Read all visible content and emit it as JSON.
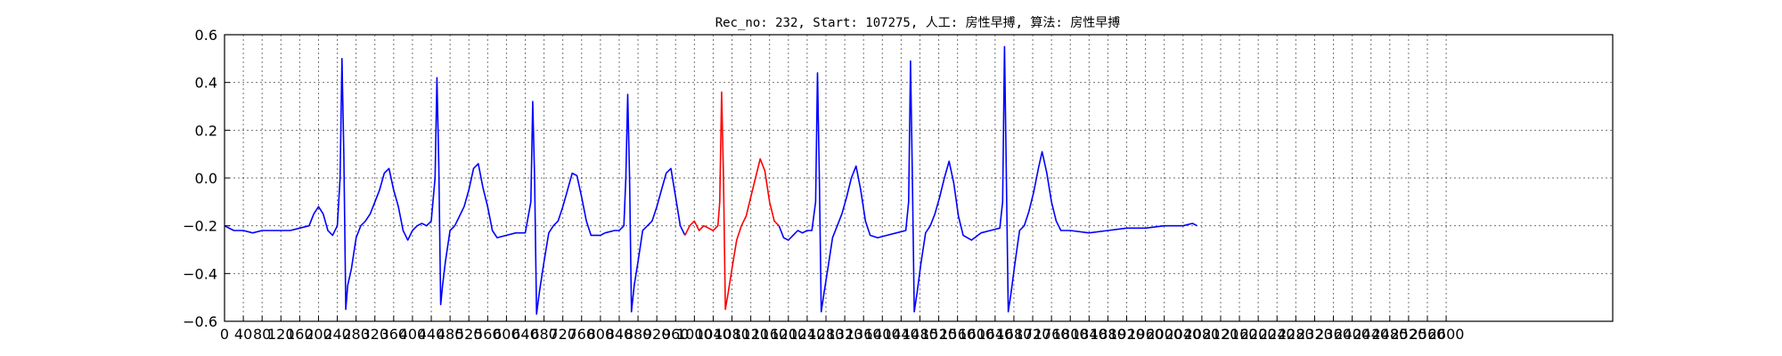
{
  "chart_data": {
    "type": "line",
    "title": "Rec_no: 232, Start: 107275, 人工: 房性早搏, 算法: 房性早搏",
    "xlabel": "",
    "ylabel": "",
    "xlim": [
      0,
      2560
    ],
    "ylim": [
      -0.6,
      0.6
    ],
    "x_step": 40,
    "x_tick_labels": [
      "0",
      "40",
      "80",
      "120",
      "160",
      "200",
      "240",
      "280",
      "320",
      "360",
      "400",
      "440",
      "480",
      "520",
      "560",
      "600",
      "640",
      "680",
      "720",
      "760",
      "800",
      "840",
      "880",
      "920",
      "960",
      "1000",
      "1040",
      "1080",
      "1120",
      "1160",
      "1200",
      "1240",
      "1280",
      "1320",
      "1360",
      "1400",
      "1440",
      "1480",
      "1520",
      "1560",
      "1600",
      "1640",
      "1680",
      "1720",
      "1760",
      "1800",
      "1840",
      "1880",
      "1920",
      "1960",
      "2000",
      "2040",
      "2080",
      "2120",
      "2160",
      "2200",
      "2240",
      "2280",
      "2320",
      "2360",
      "2400",
      "2440",
      "2480",
      "2520",
      "2560",
      "2600"
    ],
    "y_ticks": [
      -0.6,
      -0.4,
      -0.2,
      0.0,
      0.2,
      0.4,
      0.6
    ],
    "y_tick_labels": [
      "−0.6",
      "−0.4",
      "−0.2",
      "0.0",
      "0.2",
      "0.4",
      "0.6"
    ],
    "grid": true,
    "series": [
      {
        "color": "#0000ff",
        "points": [
          [
            0,
            -0.2
          ],
          [
            20,
            -0.22
          ],
          [
            40,
            -0.22
          ],
          [
            60,
            -0.23
          ],
          [
            80,
            -0.22
          ],
          [
            100,
            -0.22
          ],
          [
            120,
            -0.22
          ],
          [
            140,
            -0.22
          ],
          [
            160,
            -0.21
          ],
          [
            180,
            -0.2
          ],
          [
            190,
            -0.15
          ],
          [
            200,
            -0.12
          ],
          [
            210,
            -0.15
          ],
          [
            220,
            -0.22
          ],
          [
            230,
            -0.24
          ],
          [
            240,
            -0.2
          ],
          [
            246,
            0.0
          ],
          [
            250,
            0.5
          ],
          [
            254,
            0.1
          ],
          [
            258,
            -0.55
          ],
          [
            262,
            -0.45
          ],
          [
            270,
            -0.38
          ],
          [
            280,
            -0.25
          ],
          [
            290,
            -0.2
          ],
          [
            300,
            -0.18
          ],
          [
            310,
            -0.15
          ],
          [
            320,
            -0.1
          ],
          [
            330,
            -0.05
          ],
          [
            340,
            0.02
          ],
          [
            350,
            0.04
          ],
          [
            360,
            -0.05
          ],
          [
            370,
            -0.12
          ],
          [
            380,
            -0.22
          ],
          [
            390,
            -0.26
          ],
          [
            400,
            -0.22
          ],
          [
            410,
            -0.2
          ],
          [
            420,
            -0.19
          ],
          [
            430,
            -0.2
          ],
          [
            440,
            -0.18
          ],
          [
            448,
            0.0
          ],
          [
            452,
            0.42
          ],
          [
            456,
            0.05
          ],
          [
            460,
            -0.53
          ],
          [
            464,
            -0.45
          ],
          [
            470,
            -0.35
          ],
          [
            480,
            -0.22
          ],
          [
            490,
            -0.2
          ],
          [
            500,
            -0.16
          ],
          [
            510,
            -0.12
          ],
          [
            520,
            -0.05
          ],
          [
            530,
            0.04
          ],
          [
            540,
            0.06
          ],
          [
            550,
            -0.04
          ],
          [
            560,
            -0.12
          ],
          [
            570,
            -0.22
          ],
          [
            580,
            -0.25
          ],
          [
            600,
            -0.24
          ],
          [
            620,
            -0.23
          ],
          [
            640,
            -0.23
          ],
          [
            652,
            -0.1
          ],
          [
            656,
            0.32
          ],
          [
            660,
            0.0
          ],
          [
            664,
            -0.57
          ],
          [
            670,
            -0.48
          ],
          [
            680,
            -0.35
          ],
          [
            690,
            -0.23
          ],
          [
            700,
            -0.2
          ],
          [
            710,
            -0.18
          ],
          [
            720,
            -0.12
          ],
          [
            730,
            -0.05
          ],
          [
            740,
            0.02
          ],
          [
            750,
            0.01
          ],
          [
            760,
            -0.08
          ],
          [
            770,
            -0.18
          ],
          [
            780,
            -0.24
          ],
          [
            800,
            -0.24
          ],
          [
            810,
            -0.23
          ],
          [
            830,
            -0.22
          ],
          [
            840,
            -0.22
          ],
          [
            850,
            -0.2
          ],
          [
            854,
            0.0
          ],
          [
            858,
            0.35
          ],
          [
            862,
            0.0
          ],
          [
            866,
            -0.56
          ],
          [
            872,
            -0.45
          ],
          [
            880,
            -0.35
          ],
          [
            890,
            -0.22
          ],
          [
            900,
            -0.2
          ],
          [
            910,
            -0.18
          ],
          [
            920,
            -0.12
          ],
          [
            930,
            -0.05
          ],
          [
            940,
            0.02
          ],
          [
            950,
            0.04
          ],
          [
            960,
            -0.08
          ],
          [
            970,
            -0.2
          ],
          [
            980,
            -0.24
          ]
        ]
      },
      {
        "color": "#ff0000",
        "points": [
          [
            980,
            -0.24
          ],
          [
            990,
            -0.2
          ],
          [
            1000,
            -0.18
          ],
          [
            1010,
            -0.22
          ],
          [
            1020,
            -0.2
          ],
          [
            1030,
            -0.21
          ],
          [
            1040,
            -0.22
          ],
          [
            1050,
            -0.2
          ],
          [
            1054,
            -0.1
          ],
          [
            1058,
            0.36
          ],
          [
            1062,
            0.0
          ],
          [
            1066,
            -0.55
          ],
          [
            1072,
            -0.48
          ],
          [
            1080,
            -0.38
          ],
          [
            1090,
            -0.26
          ],
          [
            1100,
            -0.2
          ],
          [
            1110,
            -0.16
          ],
          [
            1120,
            -0.08
          ],
          [
            1130,
            0.0
          ],
          [
            1140,
            0.08
          ],
          [
            1150,
            0.03
          ],
          [
            1160,
            -0.1
          ],
          [
            1170,
            -0.18
          ],
          [
            1180,
            -0.2
          ]
        ]
      },
      {
        "color": "#0000ff",
        "points": [
          [
            1180,
            -0.2
          ],
          [
            1190,
            -0.25
          ],
          [
            1200,
            -0.26
          ],
          [
            1210,
            -0.24
          ],
          [
            1220,
            -0.22
          ],
          [
            1230,
            -0.23
          ],
          [
            1240,
            -0.22
          ],
          [
            1250,
            -0.22
          ],
          [
            1258,
            -0.1
          ],
          [
            1262,
            0.44
          ],
          [
            1266,
            0.0
          ],
          [
            1270,
            -0.56
          ],
          [
            1276,
            -0.48
          ],
          [
            1284,
            -0.38
          ],
          [
            1294,
            -0.25
          ],
          [
            1304,
            -0.2
          ],
          [
            1314,
            -0.15
          ],
          [
            1324,
            -0.08
          ],
          [
            1334,
            0.0
          ],
          [
            1344,
            0.05
          ],
          [
            1354,
            -0.05
          ],
          [
            1364,
            -0.18
          ],
          [
            1374,
            -0.24
          ],
          [
            1390,
            -0.25
          ],
          [
            1410,
            -0.24
          ],
          [
            1430,
            -0.23
          ],
          [
            1450,
            -0.22
          ],
          [
            1456,
            -0.1
          ],
          [
            1460,
            0.49
          ],
          [
            1464,
            0.0
          ],
          [
            1468,
            -0.56
          ],
          [
            1474,
            -0.48
          ],
          [
            1482,
            -0.36
          ],
          [
            1492,
            -0.23
          ],
          [
            1502,
            -0.2
          ],
          [
            1512,
            -0.15
          ],
          [
            1522,
            -0.08
          ],
          [
            1532,
            0.0
          ],
          [
            1542,
            0.07
          ],
          [
            1552,
            -0.02
          ],
          [
            1562,
            -0.16
          ],
          [
            1572,
            -0.24
          ],
          [
            1590,
            -0.26
          ],
          [
            1610,
            -0.23
          ],
          [
            1630,
            -0.22
          ],
          [
            1650,
            -0.21
          ],
          [
            1656,
            -0.1
          ],
          [
            1660,
            0.55
          ],
          [
            1664,
            0.0
          ],
          [
            1668,
            -0.56
          ],
          [
            1674,
            -0.48
          ],
          [
            1682,
            -0.36
          ],
          [
            1692,
            -0.22
          ],
          [
            1702,
            -0.2
          ],
          [
            1712,
            -0.14
          ],
          [
            1722,
            -0.06
          ],
          [
            1732,
            0.04
          ],
          [
            1740,
            0.11
          ],
          [
            1750,
            0.02
          ],
          [
            1760,
            -0.1
          ],
          [
            1770,
            -0.18
          ],
          [
            1780,
            -0.22
          ],
          [
            1800,
            -0.22
          ],
          [
            1840,
            -0.23
          ],
          [
            1880,
            -0.22
          ],
          [
            1920,
            -0.21
          ],
          [
            1960,
            -0.21
          ],
          [
            2000,
            -0.2
          ],
          [
            2040,
            -0.2
          ],
          [
            2060,
            -0.19
          ],
          [
            2070,
            -0.2
          ]
        ]
      }
    ]
  }
}
